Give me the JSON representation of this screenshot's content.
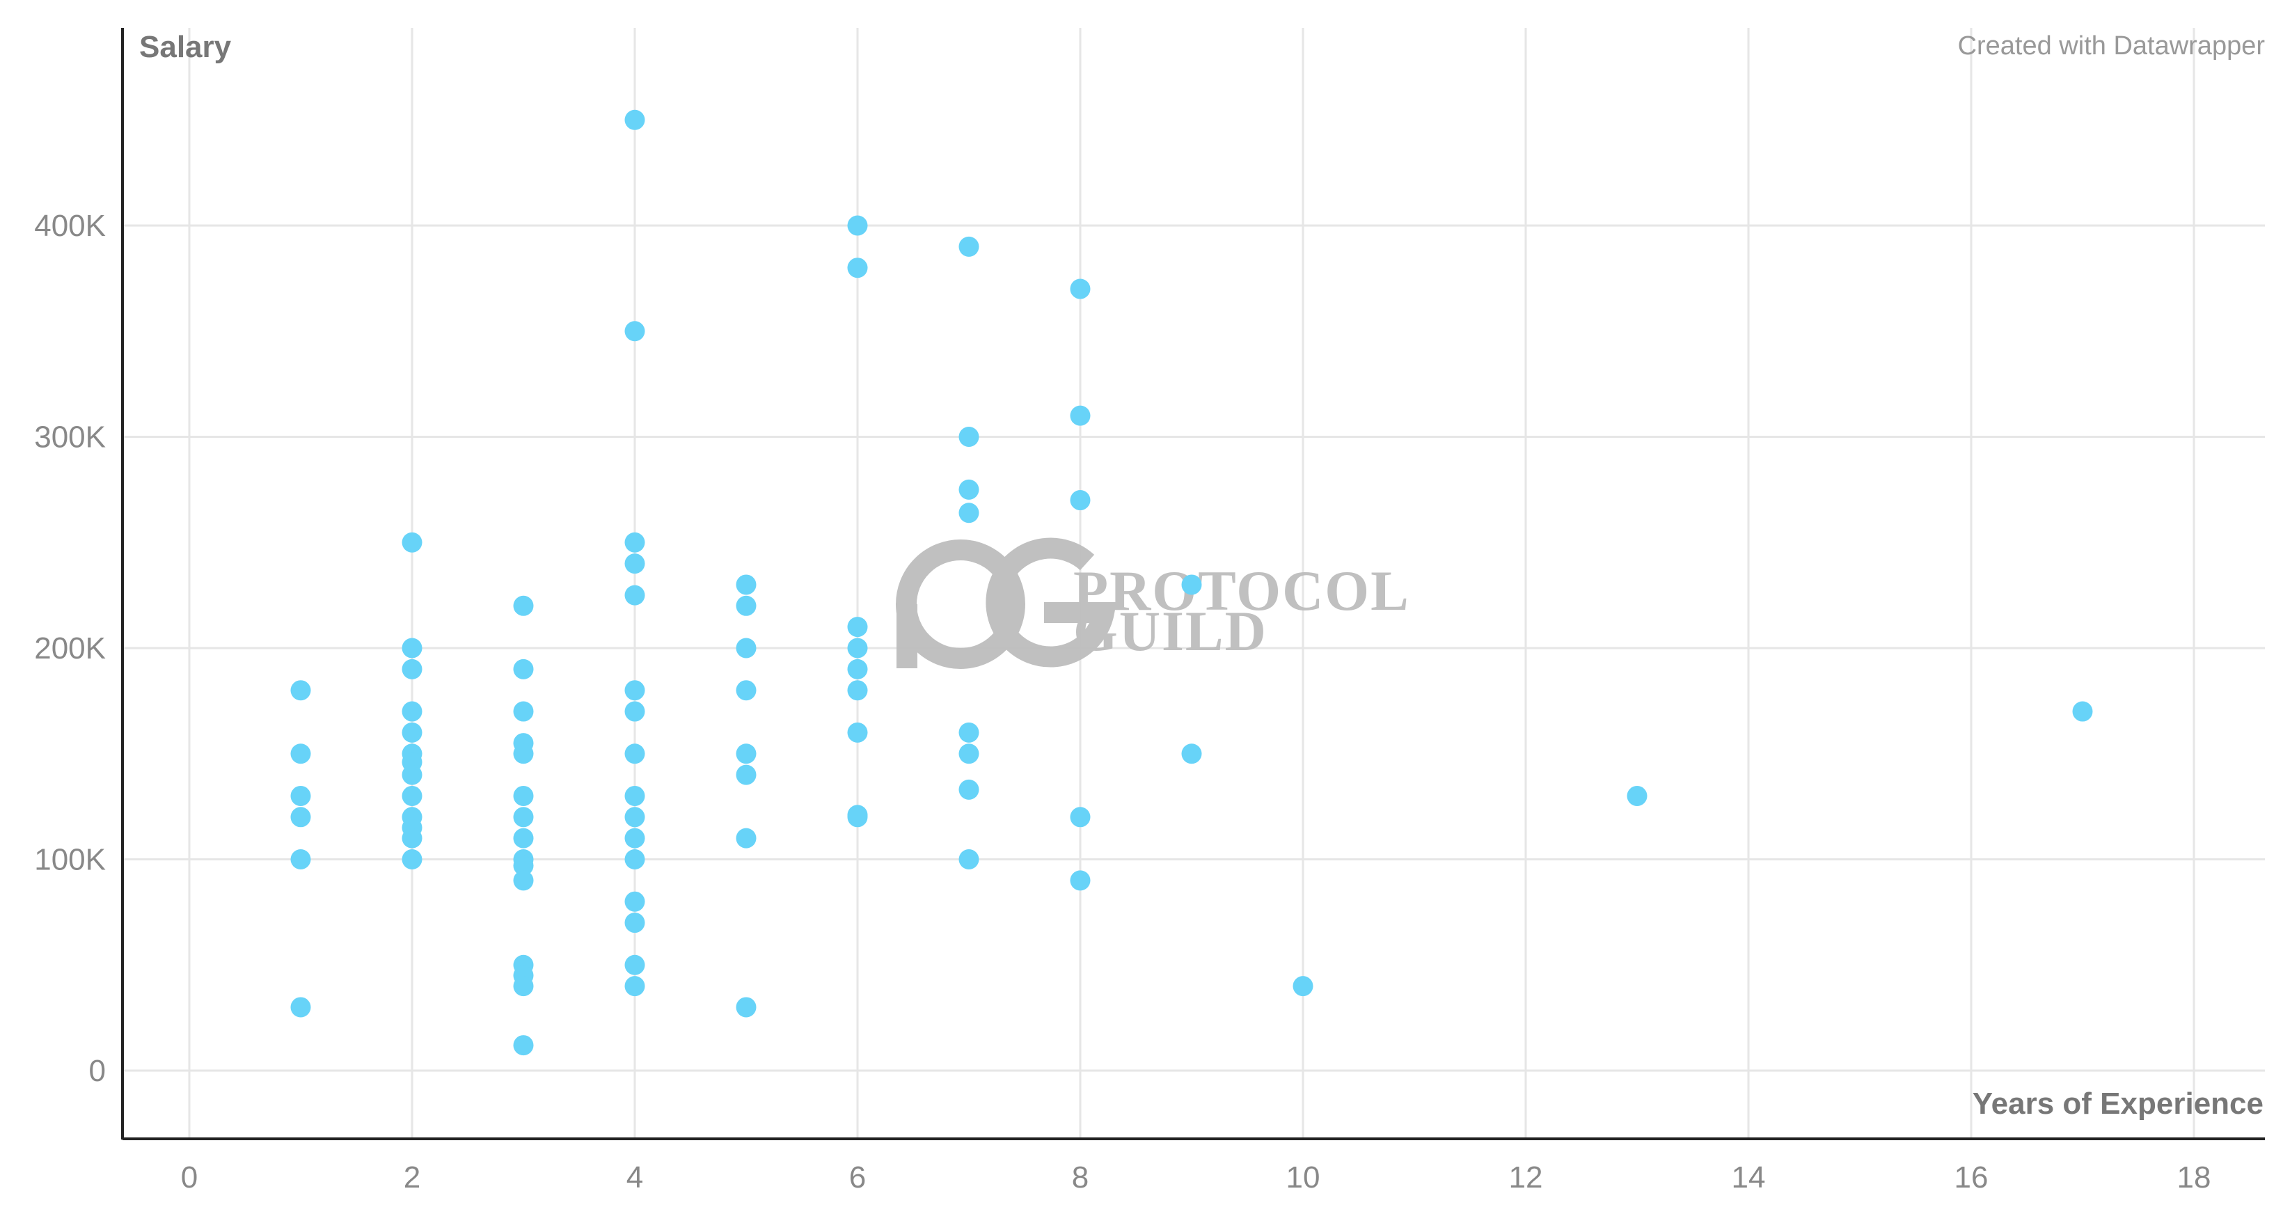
{
  "credit": "Created with Datawrapper",
  "watermark": {
    "logo_name": "protocol-guild-logo",
    "line1": "PROTOCOL",
    "line2": "GUILD"
  },
  "colors": {
    "point": "#67d3f8",
    "grid": "#e6e6e6",
    "axis": "#222222",
    "text": "#888888"
  },
  "chart_data": {
    "type": "scatter",
    "title": "",
    "xlabel": "Years of Experience",
    "ylabel": "Salary",
    "xlim": [
      -0.6,
      18.6
    ],
    "ylim": [
      -32000,
      495000
    ],
    "x_ticks": [
      0,
      2,
      4,
      6,
      8,
      10,
      12,
      14,
      16,
      18
    ],
    "y_ticks": [
      0,
      100000,
      200000,
      300000,
      400000
    ],
    "y_tick_labels": [
      "0",
      "100K",
      "200K",
      "300K",
      "400K"
    ],
    "grid": true,
    "points": [
      [
        1,
        180000
      ],
      [
        1,
        150000
      ],
      [
        1,
        130000
      ],
      [
        1,
        120000
      ],
      [
        1,
        100000
      ],
      [
        1,
        30000
      ],
      [
        2,
        250000
      ],
      [
        2,
        200000
      ],
      [
        2,
        190000
      ],
      [
        2,
        170000
      ],
      [
        2,
        160000
      ],
      [
        2,
        150000
      ],
      [
        2,
        146000
      ],
      [
        2,
        140000
      ],
      [
        2,
        130000
      ],
      [
        2,
        120000
      ],
      [
        2,
        115000
      ],
      [
        2,
        110000
      ],
      [
        2,
        100000
      ],
      [
        3,
        220000
      ],
      [
        3,
        190000
      ],
      [
        3,
        170000
      ],
      [
        3,
        155000
      ],
      [
        3,
        150000
      ],
      [
        3,
        130000
      ],
      [
        3,
        120000
      ],
      [
        3,
        110000
      ],
      [
        3,
        100000
      ],
      [
        3,
        97000
      ],
      [
        3,
        90000
      ],
      [
        3,
        50000
      ],
      [
        3,
        45000
      ],
      [
        3,
        40000
      ],
      [
        3,
        12000
      ],
      [
        4,
        450000
      ],
      [
        4,
        350000
      ],
      [
        4,
        250000
      ],
      [
        4,
        240000
      ],
      [
        4,
        225000
      ],
      [
        4,
        180000
      ],
      [
        4,
        170000
      ],
      [
        4,
        150000
      ],
      [
        4,
        130000
      ],
      [
        4,
        120000
      ],
      [
        4,
        110000
      ],
      [
        4,
        100000
      ],
      [
        4,
        80000
      ],
      [
        4,
        70000
      ],
      [
        4,
        50000
      ],
      [
        4,
        40000
      ],
      [
        5,
        230000
      ],
      [
        5,
        220000
      ],
      [
        5,
        200000
      ],
      [
        5,
        180000
      ],
      [
        5,
        150000
      ],
      [
        5,
        140000
      ],
      [
        5,
        110000
      ],
      [
        5,
        30000
      ],
      [
        6,
        400000
      ],
      [
        6,
        380000
      ],
      [
        6,
        210000
      ],
      [
        6,
        200000
      ],
      [
        6,
        190000
      ],
      [
        6,
        180000
      ],
      [
        6,
        160000
      ],
      [
        6,
        121000
      ],
      [
        6,
        120000
      ],
      [
        7,
        390000
      ],
      [
        7,
        300000
      ],
      [
        7,
        275000
      ],
      [
        7,
        264000
      ],
      [
        7,
        160000
      ],
      [
        7,
        150000
      ],
      [
        7,
        133000
      ],
      [
        7,
        100000
      ],
      [
        8,
        370000
      ],
      [
        8,
        310000
      ],
      [
        8,
        270000
      ],
      [
        8,
        120000
      ],
      [
        8,
        90000
      ],
      [
        9,
        230000
      ],
      [
        9,
        150000
      ],
      [
        10,
        40000
      ],
      [
        13,
        130000
      ],
      [
        17,
        170000
      ]
    ]
  }
}
